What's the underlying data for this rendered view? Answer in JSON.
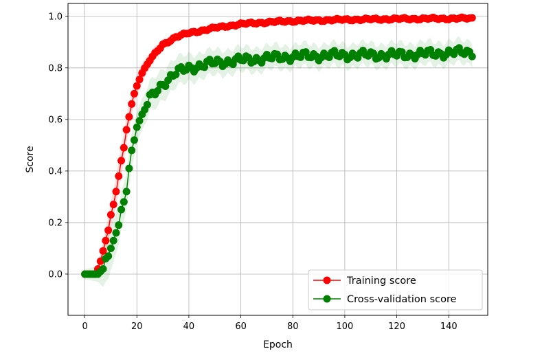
{
  "chart_data": {
    "type": "line",
    "xlabel": "Epoch",
    "ylabel": "Score",
    "xlim": [
      -6.5,
      155
    ],
    "ylim": [
      -0.16,
      1.05
    ],
    "xticks": [
      0,
      20,
      40,
      60,
      80,
      100,
      120,
      140
    ],
    "yticks": [
      0.0,
      0.2,
      0.4,
      0.6,
      0.8,
      1.0
    ],
    "xtick_labels": [
      "0",
      "20",
      "40",
      "60",
      "80",
      "100",
      "120",
      "140"
    ],
    "ytick_labels": [
      "0.0",
      "0.2",
      "0.4",
      "0.6",
      "0.8",
      "1.0"
    ],
    "grid": true,
    "legend_position": "lower-right",
    "x_range": [
      0,
      149
    ],
    "series": [
      {
        "name": "Training score",
        "color": "#ff0000",
        "marker": "circle",
        "band_color": "#ff0000",
        "keypoints": [
          [
            0,
            0.0
          ],
          [
            4,
            0.0
          ],
          [
            5,
            0.02
          ],
          [
            6,
            0.05
          ],
          [
            7,
            0.09
          ],
          [
            8,
            0.13
          ],
          [
            9,
            0.17
          ],
          [
            10,
            0.23
          ],
          [
            11,
            0.27
          ],
          [
            12,
            0.32
          ],
          [
            13,
            0.38
          ],
          [
            14,
            0.44
          ],
          [
            15,
            0.49
          ],
          [
            16,
            0.56
          ],
          [
            17,
            0.61
          ],
          [
            18,
            0.66
          ],
          [
            19,
            0.7
          ],
          [
            20,
            0.73
          ],
          [
            22,
            0.78
          ],
          [
            25,
            0.83
          ],
          [
            30,
            0.89
          ],
          [
            35,
            0.92
          ],
          [
            40,
            0.935
          ],
          [
            50,
            0.955
          ],
          [
            60,
            0.97
          ],
          [
            70,
            0.977
          ],
          [
            80,
            0.982
          ],
          [
            100,
            0.987
          ],
          [
            120,
            0.99
          ],
          [
            149,
            0.992
          ]
        ],
        "band_keypoints": [
          [
            0,
            0.0
          ],
          [
            4,
            0.01
          ],
          [
            8,
            0.05
          ],
          [
            14,
            0.06
          ],
          [
            20,
            0.04
          ],
          [
            30,
            0.02
          ],
          [
            50,
            0.012
          ],
          [
            80,
            0.008
          ],
          [
            149,
            0.006
          ]
        ],
        "wiggle": 0.003
      },
      {
        "name": "Cross-validation score",
        "color": "#008000",
        "marker": "circle",
        "band_color": "#2e9e3c",
        "keypoints": [
          [
            0,
            0.0
          ],
          [
            5,
            0.0
          ],
          [
            6,
            0.01
          ],
          [
            7,
            0.02
          ],
          [
            8,
            0.06
          ],
          [
            9,
            0.07
          ],
          [
            10,
            0.1
          ],
          [
            11,
            0.13
          ],
          [
            12,
            0.16
          ],
          [
            13,
            0.19
          ],
          [
            14,
            0.25
          ],
          [
            15,
            0.28
          ],
          [
            16,
            0.32
          ],
          [
            17,
            0.41
          ],
          [
            18,
            0.48
          ],
          [
            19,
            0.52
          ],
          [
            20,
            0.57
          ],
          [
            22,
            0.62
          ],
          [
            25,
            0.68
          ],
          [
            30,
            0.74
          ],
          [
            35,
            0.78
          ],
          [
            40,
            0.8
          ],
          [
            50,
            0.82
          ],
          [
            60,
            0.83
          ],
          [
            80,
            0.845
          ],
          [
            100,
            0.85
          ],
          [
            120,
            0.85
          ],
          [
            149,
            0.862
          ]
        ],
        "band_keypoints": [
          [
            0,
            0.02
          ],
          [
            5,
            0.03
          ],
          [
            8,
            0.09
          ],
          [
            12,
            0.08
          ],
          [
            20,
            0.06
          ],
          [
            30,
            0.06
          ],
          [
            45,
            0.05
          ],
          [
            80,
            0.045
          ],
          [
            149,
            0.045
          ]
        ],
        "wiggle": 0.012
      }
    ]
  }
}
